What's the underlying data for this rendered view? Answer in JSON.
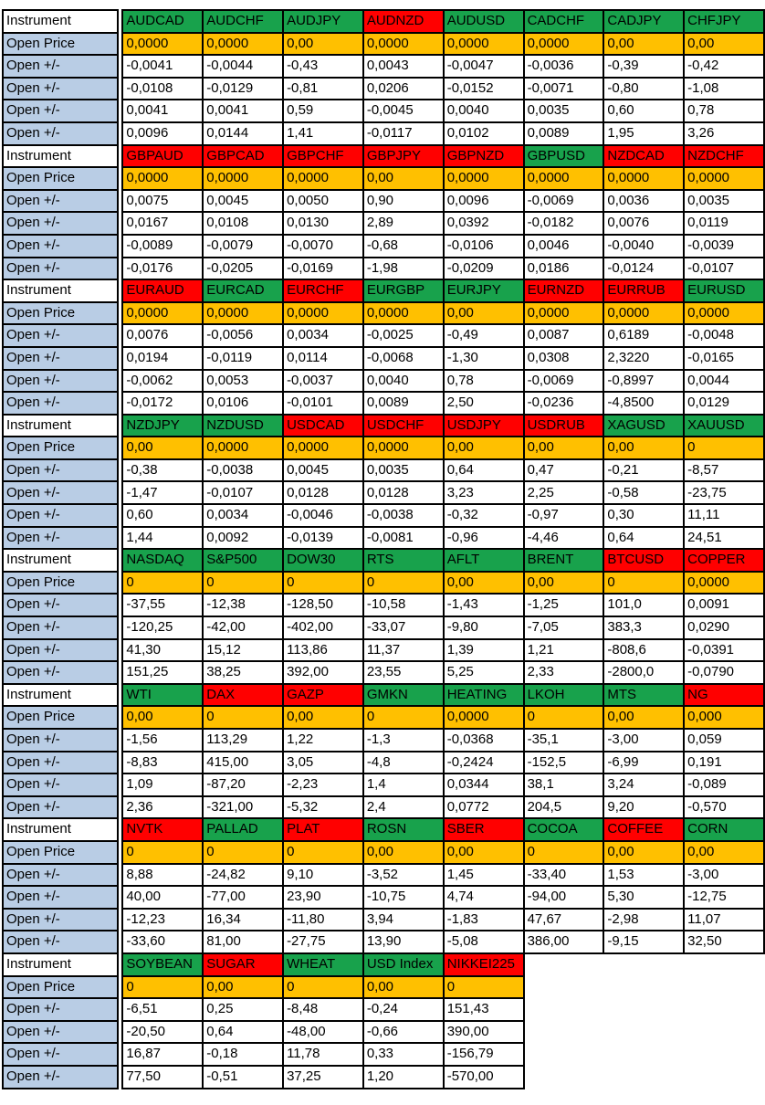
{
  "palette": {
    "green": "#18A24C",
    "red": "#FF0000",
    "orange": "#FFC000",
    "blue": "#B9CDE5",
    "border": "#000000",
    "text": "#000000"
  },
  "row_labels": {
    "instrument": "Instrument",
    "open_price": "Open Price",
    "open_change": "Open +/-"
  },
  "blocks": [
    {
      "instruments": [
        {
          "name": "AUDCAD",
          "color": "green"
        },
        {
          "name": "AUDCHF",
          "color": "green"
        },
        {
          "name": "AUDJPY",
          "color": "green"
        },
        {
          "name": "AUDNZD",
          "color": "red"
        },
        {
          "name": "AUDUSD",
          "color": "green"
        },
        {
          "name": "CADCHF",
          "color": "green"
        },
        {
          "name": "CADJPY",
          "color": "green"
        },
        {
          "name": "CHFJPY",
          "color": "green"
        }
      ],
      "open_price": [
        "0,0000",
        "0,0000",
        "0,00",
        "0,0000",
        "0,0000",
        "0,0000",
        "0,00",
        "0,00"
      ],
      "changes": [
        [
          "-0,0041",
          "-0,0044",
          "-0,43",
          "0,0043",
          "-0,0047",
          "-0,0036",
          "-0,39",
          "-0,42"
        ],
        [
          "-0,0108",
          "-0,0129",
          "-0,81",
          "0,0206",
          "-0,0152",
          "-0,0071",
          "-0,80",
          "-1,08"
        ],
        [
          "0,0041",
          "0,0041",
          "0,59",
          "-0,0045",
          "0,0040",
          "0,0035",
          "0,60",
          "0,78"
        ],
        [
          "0,0096",
          "0,0144",
          "1,41",
          "-0,0117",
          "0,0102",
          "0,0089",
          "1,95",
          "3,26"
        ]
      ]
    },
    {
      "instruments": [
        {
          "name": "GBPAUD",
          "color": "red"
        },
        {
          "name": "GBPCAD",
          "color": "red"
        },
        {
          "name": "GBPCHF",
          "color": "red"
        },
        {
          "name": "GBPJPY",
          "color": "red"
        },
        {
          "name": "GBPNZD",
          "color": "red"
        },
        {
          "name": "GBPUSD",
          "color": "green"
        },
        {
          "name": "NZDCAD",
          "color": "red"
        },
        {
          "name": "NZDCHF",
          "color": "red"
        }
      ],
      "open_price": [
        "0,0000",
        "0,0000",
        "0,0000",
        "0,00",
        "0,0000",
        "0,0000",
        "0,0000",
        "0,0000"
      ],
      "changes": [
        [
          "0,0075",
          "0,0045",
          "0,0050",
          "0,90",
          "0,0096",
          "-0,0069",
          "0,0036",
          "0,0035"
        ],
        [
          "0,0167",
          "0,0108",
          "0,0130",
          "2,89",
          "0,0392",
          "-0,0182",
          "0,0076",
          "0,0119"
        ],
        [
          "-0,0089",
          "-0,0079",
          "-0,0070",
          "-0,68",
          "-0,0106",
          "0,0046",
          "-0,0040",
          "-0,0039"
        ],
        [
          "-0,0176",
          "-0,0205",
          "-0,0169",
          "-1,98",
          "-0,0209",
          "0,0186",
          "-0,0124",
          "-0,0107"
        ]
      ]
    },
    {
      "instruments": [
        {
          "name": "EURAUD",
          "color": "red"
        },
        {
          "name": "EURCAD",
          "color": "green"
        },
        {
          "name": "EURCHF",
          "color": "red"
        },
        {
          "name": "EURGBP",
          "color": "green"
        },
        {
          "name": "EURJPY",
          "color": "green"
        },
        {
          "name": "EURNZD",
          "color": "red"
        },
        {
          "name": "EURRUB",
          "color": "red"
        },
        {
          "name": "EURUSD",
          "color": "green"
        }
      ],
      "open_price": [
        "0,0000",
        "0,0000",
        "0,0000",
        "0,0000",
        "0,00",
        "0,0000",
        "0,0000",
        "0,0000"
      ],
      "changes": [
        [
          "0,0076",
          "-0,0056",
          "0,0034",
          "-0,0025",
          "-0,49",
          "0,0087",
          "0,6189",
          "-0,0048"
        ],
        [
          "0,0194",
          "-0,0119",
          "0,0114",
          "-0,0068",
          "-1,30",
          "0,0308",
          "2,3220",
          "-0,0165"
        ],
        [
          "-0,0062",
          "0,0053",
          "-0,0037",
          "0,0040",
          "0,78",
          "-0,0069",
          "-0,8997",
          "0,0044"
        ],
        [
          "-0,0172",
          "0,0106",
          "-0,0101",
          "0,0089",
          "2,50",
          "-0,0236",
          "-4,8500",
          "0,0129"
        ]
      ]
    },
    {
      "instruments": [
        {
          "name": "NZDJPY",
          "color": "green"
        },
        {
          "name": "NZDUSD",
          "color": "green"
        },
        {
          "name": "USDCAD",
          "color": "red"
        },
        {
          "name": "USDCHF",
          "color": "red"
        },
        {
          "name": "USDJPY",
          "color": "red"
        },
        {
          "name": "USDRUB",
          "color": "red"
        },
        {
          "name": "XAGUSD",
          "color": "green"
        },
        {
          "name": "XAUUSD",
          "color": "green"
        }
      ],
      "open_price": [
        "0,00",
        "0,0000",
        "0,0000",
        "0,0000",
        "0,00",
        "0,00",
        "0,00",
        "0"
      ],
      "changes": [
        [
          "-0,38",
          "-0,0038",
          "0,0045",
          "0,0035",
          "0,64",
          "0,47",
          "-0,21",
          "-8,57"
        ],
        [
          "-1,47",
          "-0,0107",
          "0,0128",
          "0,0128",
          "3,23",
          "2,25",
          "-0,58",
          "-23,75"
        ],
        [
          "0,60",
          "0,0034",
          "-0,0046",
          "-0,0038",
          "-0,32",
          "-0,97",
          "0,30",
          "11,11"
        ],
        [
          "1,44",
          "0,0092",
          "-0,0139",
          "-0,0081",
          "-0,96",
          "-4,46",
          "0,64",
          "24,51"
        ]
      ]
    },
    {
      "instruments": [
        {
          "name": "NASDAQ",
          "color": "green"
        },
        {
          "name": "S&P500",
          "color": "green"
        },
        {
          "name": "DOW30",
          "color": "green"
        },
        {
          "name": "RTS",
          "color": "green"
        },
        {
          "name": "AFLT",
          "color": "green"
        },
        {
          "name": "BRENT",
          "color": "green"
        },
        {
          "name": "BTCUSD",
          "color": "red"
        },
        {
          "name": "COPPER",
          "color": "red"
        }
      ],
      "open_price": [
        "0",
        "0",
        "0",
        "0",
        "0,00",
        "0,00",
        "0",
        "0,0000"
      ],
      "changes": [
        [
          "-37,55",
          "-12,38",
          "-128,50",
          "-10,58",
          "-1,43",
          "-1,25",
          "101,0",
          "0,0091"
        ],
        [
          "-120,25",
          "-42,00",
          "-402,00",
          "-33,07",
          "-9,80",
          "-7,05",
          "383,3",
          "0,0290"
        ],
        [
          "41,30",
          "15,12",
          "113,86",
          "11,37",
          "1,39",
          "1,21",
          "-808,6",
          "-0,0391"
        ],
        [
          "151,25",
          "38,25",
          "392,00",
          "23,55",
          "5,25",
          "2,33",
          "-2800,0",
          "-0,0790"
        ]
      ]
    },
    {
      "instruments": [
        {
          "name": "WTI",
          "color": "green"
        },
        {
          "name": "DAX",
          "color": "red"
        },
        {
          "name": "GAZP",
          "color": "red"
        },
        {
          "name": "GMKN",
          "color": "green"
        },
        {
          "name": "HEATING",
          "color": "green"
        },
        {
          "name": "LKOH",
          "color": "green"
        },
        {
          "name": "MTS",
          "color": "green"
        },
        {
          "name": "NG",
          "color": "red"
        }
      ],
      "open_price": [
        "0,00",
        "0",
        "0,00",
        "0",
        "0,0000",
        "0",
        "0,00",
        "0,000"
      ],
      "changes": [
        [
          "-1,56",
          "113,29",
          "1,22",
          "-1,3",
          "-0,0368",
          "-35,1",
          "-3,00",
          "0,059"
        ],
        [
          "-8,83",
          "415,00",
          "3,05",
          "-4,8",
          "-0,2424",
          "-152,5",
          "-6,99",
          "0,191"
        ],
        [
          "1,09",
          "-87,20",
          "-2,23",
          "1,4",
          "0,0344",
          "38,1",
          "3,24",
          "-0,089"
        ],
        [
          "2,36",
          "-321,00",
          "-5,32",
          "2,4",
          "0,0772",
          "204,5",
          "9,20",
          "-0,570"
        ]
      ]
    },
    {
      "instruments": [
        {
          "name": "NVTK",
          "color": "red"
        },
        {
          "name": "PALLAD",
          "color": "green"
        },
        {
          "name": "PLAT",
          "color": "red"
        },
        {
          "name": "ROSN",
          "color": "green"
        },
        {
          "name": "SBER",
          "color": "red"
        },
        {
          "name": "COCOA",
          "color": "green"
        },
        {
          "name": "COFFEE",
          "color": "red"
        },
        {
          "name": "CORN",
          "color": "green"
        }
      ],
      "open_price": [
        "0",
        "0",
        "0",
        "0,00",
        "0,00",
        "0",
        "0,00",
        "0,00"
      ],
      "changes": [
        [
          "8,88",
          "-24,82",
          "9,10",
          "-3,52",
          "1,45",
          "-33,40",
          "1,53",
          "-3,00"
        ],
        [
          "40,00",
          "-77,00",
          "23,90",
          "-10,75",
          "4,74",
          "-94,00",
          "5,30",
          "-12,75"
        ],
        [
          "-12,23",
          "16,34",
          "-11,80",
          "3,94",
          "-1,83",
          "47,67",
          "-2,98",
          "11,07"
        ],
        [
          "-33,60",
          "81,00",
          "-27,75",
          "13,90",
          "-5,08",
          "386,00",
          "-9,15",
          "32,50"
        ]
      ]
    },
    {
      "instruments": [
        {
          "name": "SOYBEAN",
          "color": "green"
        },
        {
          "name": "SUGAR",
          "color": "red"
        },
        {
          "name": "WHEAT",
          "color": "green"
        },
        {
          "name": "USD Index",
          "color": "green"
        },
        {
          "name": "NIKKEI225",
          "color": "red"
        }
      ],
      "open_price": [
        "0",
        "0,00",
        "0",
        "0,00",
        "0"
      ],
      "changes": [
        [
          "-6,51",
          "0,25",
          "-8,48",
          "-0,24",
          "151,43"
        ],
        [
          "-20,50",
          "0,64",
          "-48,00",
          "-0,66",
          "390,00"
        ],
        [
          "16,87",
          "-0,18",
          "11,78",
          "0,33",
          "-156,79"
        ],
        [
          "77,50",
          "-0,51",
          "37,25",
          "1,20",
          "-570,00"
        ]
      ]
    }
  ]
}
